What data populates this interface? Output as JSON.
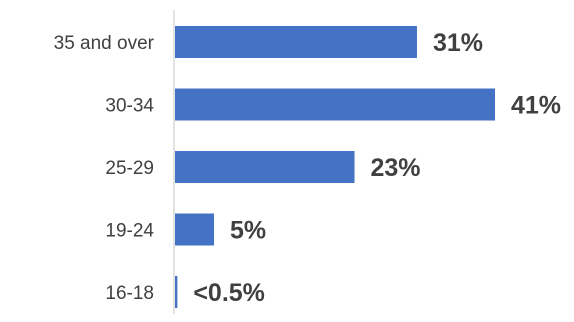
{
  "chart_data": {
    "type": "bar",
    "orientation": "horizontal",
    "categories": [
      "35 and over",
      "30-34",
      "25-29",
      "19-24",
      "16-18"
    ],
    "values": [
      31,
      41,
      23,
      5,
      0.3
    ],
    "data_labels": [
      "31%",
      "41%",
      "23%",
      "5%",
      "<0.5%"
    ],
    "title": "",
    "xlabel": "",
    "ylabel": "",
    "xlim": [
      0,
      41
    ],
    "grid": false,
    "legend": "none",
    "colors": {
      "bar": "#4472C4",
      "axis": "#D9D9D9",
      "text": "#404040"
    }
  }
}
